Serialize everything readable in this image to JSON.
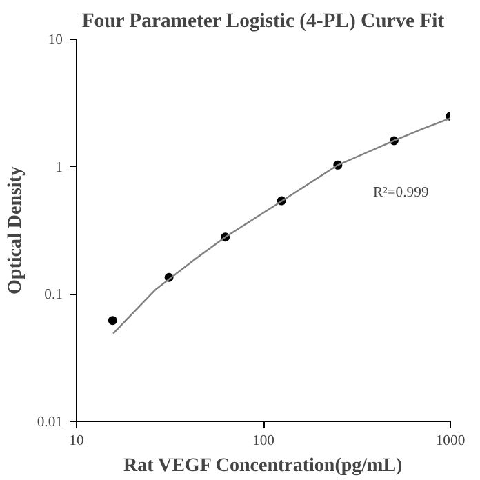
{
  "chart_data": {
    "type": "scatter",
    "title": "Four Parameter Logistic (4-PL) Curve Fit",
    "xlabel": "Rat VEGF Concentration(pg/mL)",
    "ylabel": "Optical Density",
    "log": "xy",
    "grid": false,
    "xlim": [
      10,
      1000
    ],
    "ylim": [
      0.01,
      10
    ],
    "xticks": [
      10,
      100,
      1000
    ],
    "yticks": [
      0.01,
      0.1,
      1,
      10
    ],
    "annotations": [
      "R²=0.999"
    ],
    "series": [
      {
        "marker": "circle",
        "color": "#000000",
        "x": [
          15.6,
          31.25,
          62.5,
          125,
          250,
          500,
          1000
        ],
        "values": [
          0.062,
          0.135,
          0.28,
          0.54,
          1.03,
          1.6,
          2.49
        ]
      },
      {
        "type": "line",
        "marker": "none",
        "line_style": "solid",
        "color": "#808080",
        "x": [
          15.7,
          26.4,
          44.3,
          62.5,
          125,
          250,
          500,
          716,
          1000
        ],
        "values": [
          0.049,
          0.108,
          0.194,
          0.28,
          0.536,
          1.03,
          1.6,
          1.99,
          2.4
        ]
      }
    ]
  }
}
